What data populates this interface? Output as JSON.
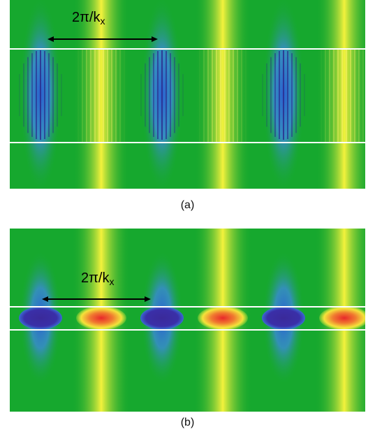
{
  "panels": [
    {
      "id": "a",
      "caption": "(a)",
      "arrow_label": {
        "main": "2π/k",
        "sub": "x"
      }
    },
    {
      "id": "b",
      "caption": "(b)",
      "arrow_label": {
        "main": "2π/k",
        "sub": "x"
      }
    }
  ],
  "colors": {
    "background_field": "#16a82e",
    "negative_lobe": "#2a6fd6",
    "positive_lobe": "#f2ef3a",
    "core_negative": "#3a2a9a",
    "core_positive": "#e83a2a",
    "boundary_line": "#ffffff",
    "arrow": "#000000"
  }
}
